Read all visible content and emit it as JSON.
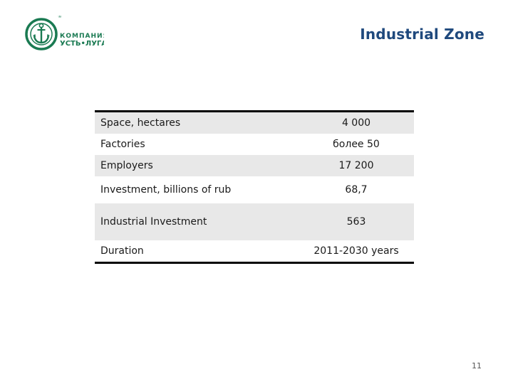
{
  "logo": {
    "text_top": "КОМПАНИЯ",
    "text_bottom": "УСТЬ•ЛУГА",
    "registered_mark": "®",
    "color": "#1a7a52"
  },
  "title": "Industrial Zone",
  "title_color": "#1f497d",
  "table": {
    "rows": [
      {
        "label": "Space, hectares",
        "value": "4 000",
        "shaded": true
      },
      {
        "label": "Factories",
        "value": "более 50",
        "shaded": false
      },
      {
        "label": "Employers",
        "value": "17 200",
        "shaded": true
      },
      {
        "label": "Investment, billions of rub",
        "value": "68,7",
        "shaded": false
      },
      {
        "label": "Industrial Investment",
        "value": "563",
        "shaded": true
      },
      {
        "label": "Duration",
        "value": "2011-2030 years",
        "shaded": false
      }
    ]
  },
  "page_number": "11"
}
